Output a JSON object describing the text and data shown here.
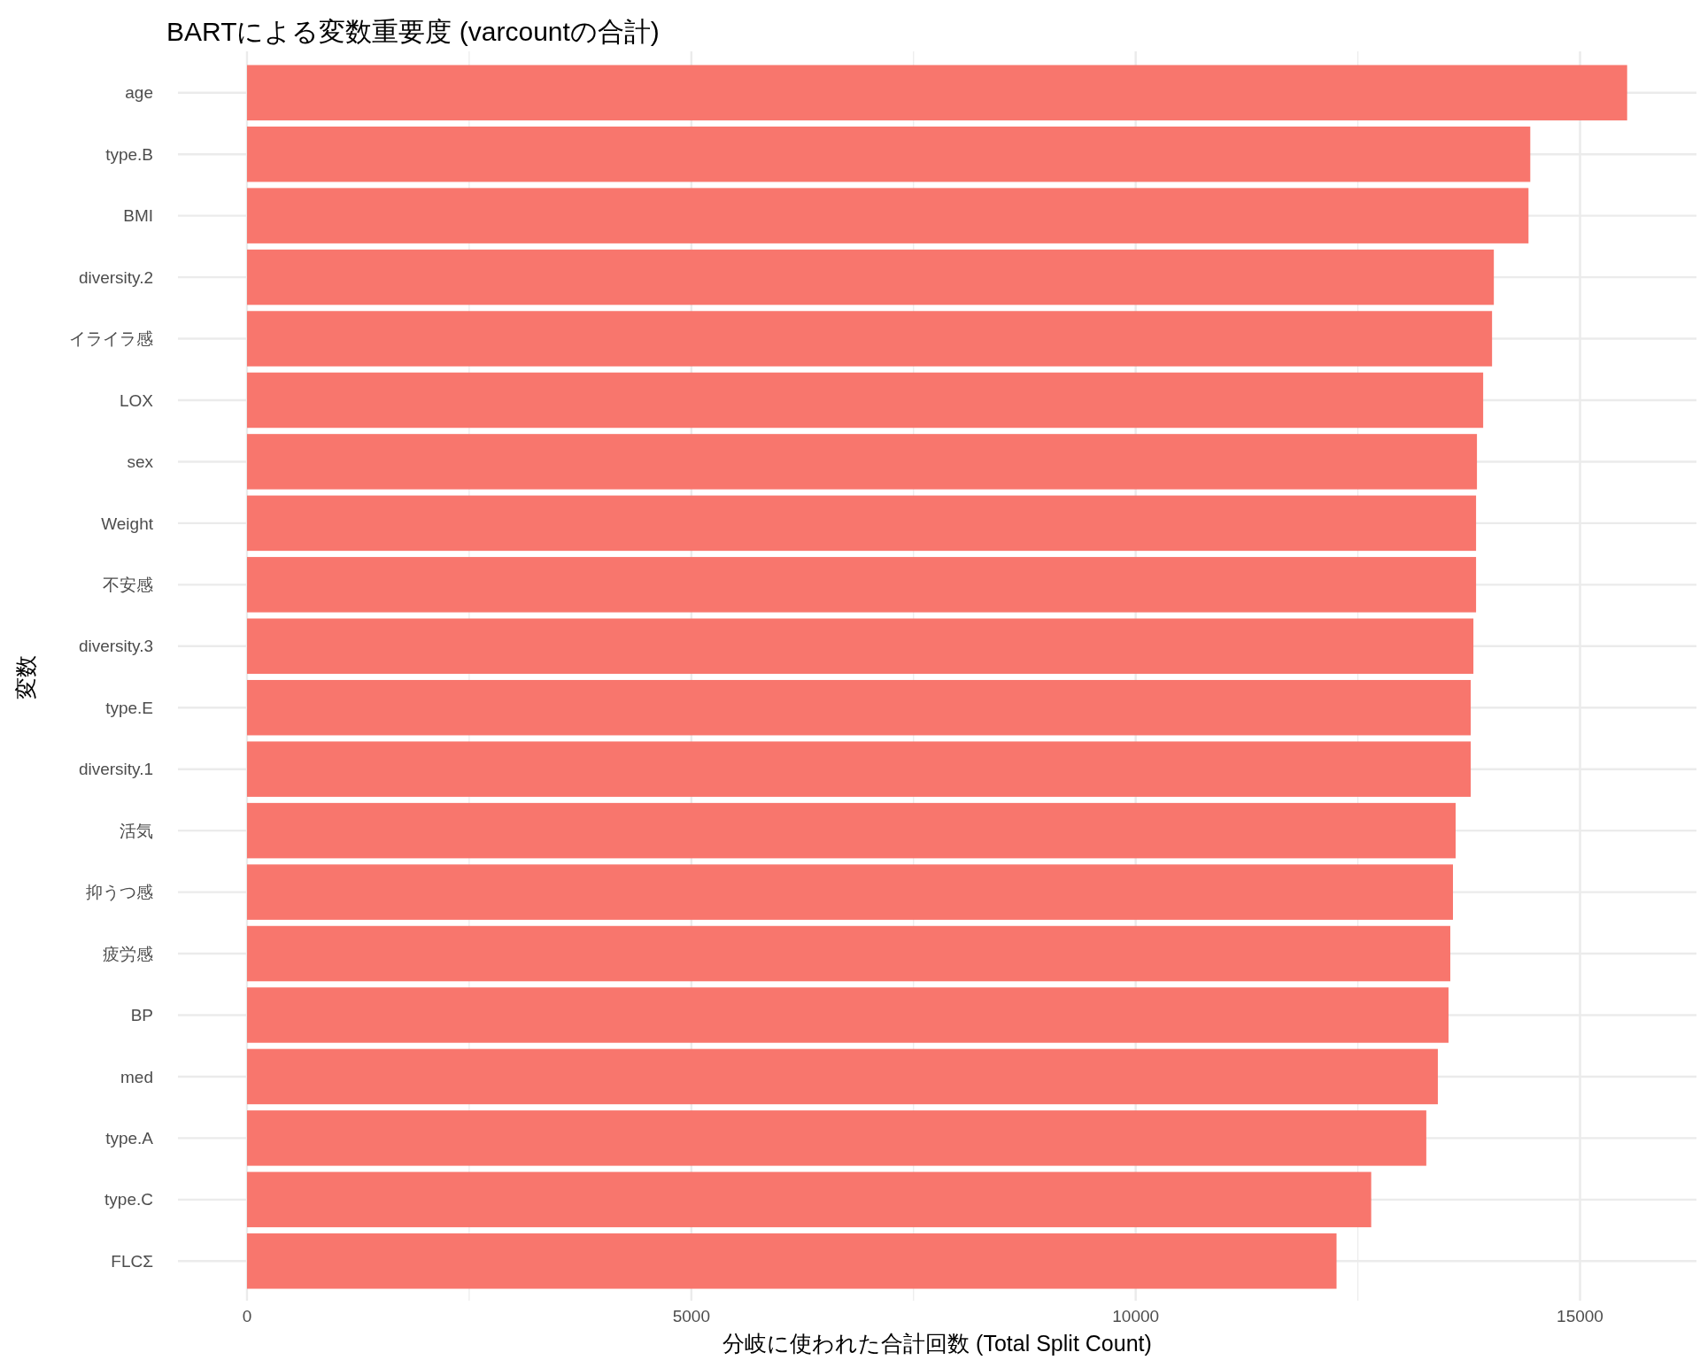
{
  "chart_data": {
    "type": "bar",
    "orientation": "horizontal",
    "title": "BARTによる変数重要度 (varcountの合計)",
    "xlabel": "分岐に使われた合計回数 (Total Split Count)",
    "ylabel": "変数",
    "categories": [
      "age",
      "type.B",
      "BMI",
      "diversity.2",
      "イライラ感",
      "LOX",
      "sex",
      "Weight",
      "不安感",
      "diversity.3",
      "type.E",
      "diversity.1",
      "活気",
      "抑うつ感",
      "疲労感",
      "BP",
      "med",
      "type.A",
      "type.C",
      "FLCΣ"
    ],
    "values": [
      15530,
      14440,
      14420,
      14030,
      14010,
      13910,
      13840,
      13830,
      13830,
      13800,
      13770,
      13770,
      13600,
      13570,
      13540,
      13520,
      13400,
      13270,
      12650,
      12260
    ],
    "color": "#f8766d",
    "xlim": [
      -777,
      16310
    ],
    "xticks": [
      0,
      {
        "value": 2500,
        "label": null
      },
      5000,
      {
        "value": 7500,
        "label": null
      },
      10000,
      {
        "value": 12500,
        "label": null
      },
      15000
    ],
    "grid": true
  }
}
